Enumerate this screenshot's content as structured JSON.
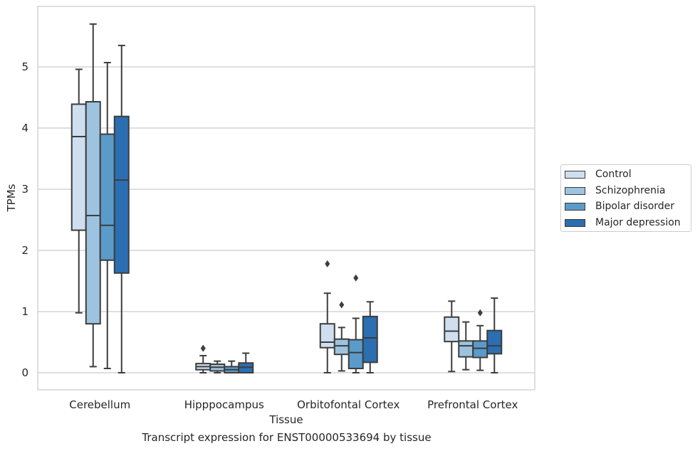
{
  "chart_data": {
    "type": "box",
    "title": "",
    "caption": "Transcript expression for ENST00000533694 by tissue",
    "xlabel": "Tissue",
    "ylabel": "TPMs",
    "ylim": [
      -0.28,
      6.0
    ],
    "yticks": [
      0,
      1,
      2,
      3,
      4,
      5
    ],
    "grid": "horizontal",
    "legend_position": "right",
    "categories": [
      "Cerebellum",
      "Hipppocampus",
      "Orbitofontal Cortex",
      "Prefrontal Cortex"
    ],
    "series": [
      {
        "name": "Control",
        "color": "#cfdff0",
        "boxes": [
          {
            "whisker_low": 0.98,
            "q1": 2.33,
            "median": 3.86,
            "q3": 4.39,
            "whisker_high": 4.96,
            "outliers": []
          },
          {
            "whisker_low": 0.0,
            "q1": 0.05,
            "median": 0.1,
            "q3": 0.15,
            "whisker_high": 0.28,
            "outliers": [
              0.4
            ]
          },
          {
            "whisker_low": 0.0,
            "q1": 0.41,
            "median": 0.5,
            "q3": 0.8,
            "whisker_high": 1.3,
            "outliers": [
              1.78
            ]
          },
          {
            "whisker_low": 0.02,
            "q1": 0.51,
            "median": 0.68,
            "q3": 0.91,
            "whisker_high": 1.17,
            "outliers": []
          }
        ]
      },
      {
        "name": "Schizophrenia",
        "color": "#9dc3df",
        "boxes": [
          {
            "whisker_low": 0.1,
            "q1": 0.8,
            "median": 2.57,
            "q3": 4.43,
            "whisker_high": 5.7,
            "outliers": []
          },
          {
            "whisker_low": 0.0,
            "q1": 0.03,
            "median": 0.09,
            "q3": 0.14,
            "whisker_high": 0.19,
            "outliers": []
          },
          {
            "whisker_low": 0.03,
            "q1": 0.3,
            "median": 0.44,
            "q3": 0.55,
            "whisker_high": 0.74,
            "outliers": [
              1.11
            ]
          },
          {
            "whisker_low": 0.05,
            "q1": 0.26,
            "median": 0.44,
            "q3": 0.52,
            "whisker_high": 0.83,
            "outliers": []
          }
        ]
      },
      {
        "name": "Bipolar disorder",
        "color": "#5b9bca",
        "boxes": [
          {
            "whisker_low": 0.07,
            "q1": 1.84,
            "median": 2.41,
            "q3": 3.9,
            "whisker_high": 5.07,
            "outliers": []
          },
          {
            "whisker_low": 0.0,
            "q1": 0.0,
            "median": 0.05,
            "q3": 0.1,
            "whisker_high": 0.19,
            "outliers": []
          },
          {
            "whisker_low": 0.0,
            "q1": 0.07,
            "median": 0.33,
            "q3": 0.54,
            "whisker_high": 0.89,
            "outliers": [
              1.55
            ]
          },
          {
            "whisker_low": 0.04,
            "q1": 0.25,
            "median": 0.4,
            "q3": 0.52,
            "whisker_high": 0.77,
            "outliers": [
              0.98
            ]
          }
        ]
      },
      {
        "name": "Major depression",
        "color": "#2b6eb2",
        "boxes": [
          {
            "whisker_low": 0.0,
            "q1": 1.63,
            "median": 3.15,
            "q3": 4.19,
            "whisker_high": 5.35,
            "outliers": []
          },
          {
            "whisker_low": 0.0,
            "q1": 0.0,
            "median": 0.09,
            "q3": 0.16,
            "whisker_high": 0.32,
            "outliers": []
          },
          {
            "whisker_low": 0.0,
            "q1": 0.17,
            "median": 0.57,
            "q3": 0.92,
            "whisker_high": 1.16,
            "outliers": []
          },
          {
            "whisker_low": 0.0,
            "q1": 0.31,
            "median": 0.44,
            "q3": 0.69,
            "whisker_high": 1.22,
            "outliers": []
          }
        ]
      }
    ]
  }
}
